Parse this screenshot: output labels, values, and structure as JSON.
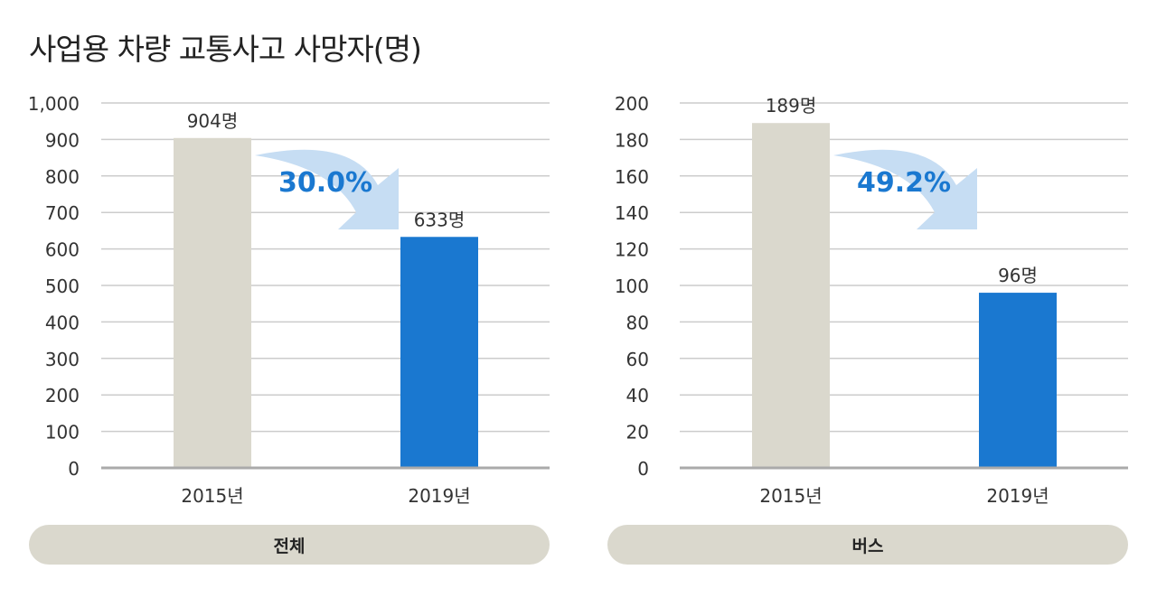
{
  "title": "사업용 차량 교통사고 사망자(명)",
  "colors": {
    "bar_2015": "#dad8cd",
    "bar_2019": "#1a78d0",
    "arrow": "#c6ddf3",
    "percent": "#1a78d0",
    "grid": "#cccccc"
  },
  "chart_data": [
    {
      "type": "bar",
      "category_label": "전체",
      "categories": [
        "2015년",
        "2019년"
      ],
      "values": [
        904,
        633
      ],
      "data_labels": [
        "904명",
        "633명"
      ],
      "change_label": "30.0%",
      "ylim": [
        0,
        1000
      ],
      "yticks": [
        0,
        100,
        200,
        300,
        400,
        500,
        600,
        700,
        800,
        900,
        1000
      ],
      "ytick_labels": [
        "0",
        "100",
        "200",
        "300",
        "400",
        "500",
        "600",
        "700",
        "800",
        "900",
        "1,000"
      ],
      "grid": true
    },
    {
      "type": "bar",
      "category_label": "버스",
      "categories": [
        "2015년",
        "2019년"
      ],
      "values": [
        189,
        96
      ],
      "data_labels": [
        "189명",
        "96명"
      ],
      "change_label": "49.2%",
      "ylim": [
        0,
        200
      ],
      "yticks": [
        0,
        20,
        40,
        60,
        80,
        100,
        120,
        140,
        160,
        180,
        200
      ],
      "ytick_labels": [
        "0",
        "20",
        "40",
        "60",
        "80",
        "100",
        "120",
        "140",
        "160",
        "180",
        "200"
      ],
      "grid": true
    }
  ]
}
